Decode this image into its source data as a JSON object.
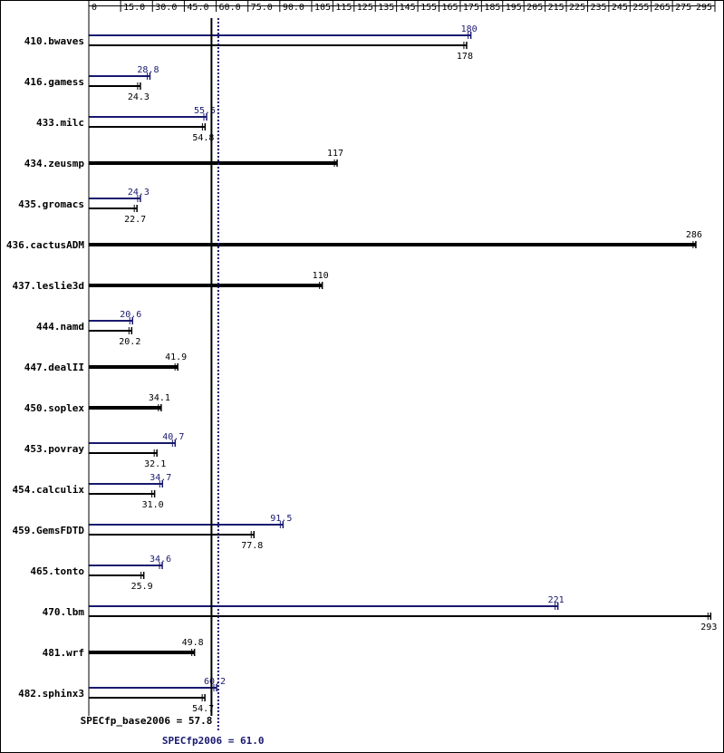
{
  "chart_data": {
    "type": "bar",
    "orientation": "horizontal",
    "xlim": [
      0,
      295
    ],
    "ticks": [
      "0",
      "15.0",
      "30.0",
      "45.0",
      "60.0",
      "75.0",
      "90.0",
      "105",
      "115",
      "125",
      "135",
      "145",
      "155",
      "165",
      "175",
      "185",
      "195",
      "205",
      "215",
      "225",
      "235",
      "245",
      "255",
      "265",
      "275",
      "295"
    ],
    "tick_values": [
      0,
      15,
      30,
      45,
      60,
      75,
      90,
      105,
      115,
      125,
      135,
      145,
      155,
      165,
      175,
      185,
      195,
      205,
      215,
      225,
      235,
      245,
      255,
      265,
      275,
      295
    ],
    "series_colors": {
      "peak": "#191970",
      "base": "#000000"
    },
    "summary": {
      "base_label": "SPECfp_base2006 = 57.8",
      "base_value": 57.8,
      "peak_label": "SPECfp2006 = 61.0",
      "peak_value": 61.0
    },
    "benchmarks": [
      {
        "name": "410.bwaves",
        "peak": 180,
        "peak_label": "180",
        "base": 178,
        "base_label": "178"
      },
      {
        "name": "416.gamess",
        "peak": 28.8,
        "peak_label": "28.8",
        "base": 24.3,
        "base_label": "24.3"
      },
      {
        "name": "433.milc",
        "peak": 55.5,
        "peak_label": "55.5",
        "base": 54.8,
        "base_label": "54.8"
      },
      {
        "name": "434.zeusmp",
        "peak": null,
        "peak_label": null,
        "base": 117,
        "base_label": "117"
      },
      {
        "name": "435.gromacs",
        "peak": 24.3,
        "peak_label": "24.3",
        "base": 22.7,
        "base_label": "22.7"
      },
      {
        "name": "436.cactusADM",
        "peak": null,
        "peak_label": null,
        "base": 286,
        "base_label": "286"
      },
      {
        "name": "437.leslie3d",
        "peak": null,
        "peak_label": null,
        "base": 110,
        "base_label": "110"
      },
      {
        "name": "444.namd",
        "peak": 20.6,
        "peak_label": "20.6",
        "base": 20.2,
        "base_label": "20.2"
      },
      {
        "name": "447.dealII",
        "peak": null,
        "peak_label": null,
        "base": 41.9,
        "base_label": "41.9"
      },
      {
        "name": "450.soplex",
        "peak": null,
        "peak_label": null,
        "base": 34.1,
        "base_label": "34.1"
      },
      {
        "name": "453.povray",
        "peak": 40.7,
        "peak_label": "40.7",
        "base": 32.1,
        "base_label": "32.1"
      },
      {
        "name": "454.calculix",
        "peak": 34.7,
        "peak_label": "34.7",
        "base": 31.0,
        "base_label": "31.0"
      },
      {
        "name": "459.GemsFDTD",
        "peak": 91.5,
        "peak_label": "91.5",
        "base": 77.8,
        "base_label": "77.8"
      },
      {
        "name": "465.tonto",
        "peak": 34.6,
        "peak_label": "34.6",
        "base": 25.9,
        "base_label": "25.9"
      },
      {
        "name": "470.lbm",
        "peak": 221,
        "peak_label": "221",
        "base": 293,
        "base_label": "293"
      },
      {
        "name": "481.wrf",
        "peak": null,
        "peak_label": null,
        "base": 49.8,
        "base_label": "49.8"
      },
      {
        "name": "482.sphinx3",
        "peak": 60.2,
        "peak_label": "60.2",
        "base": 54.7,
        "base_label": "54.7"
      }
    ]
  }
}
